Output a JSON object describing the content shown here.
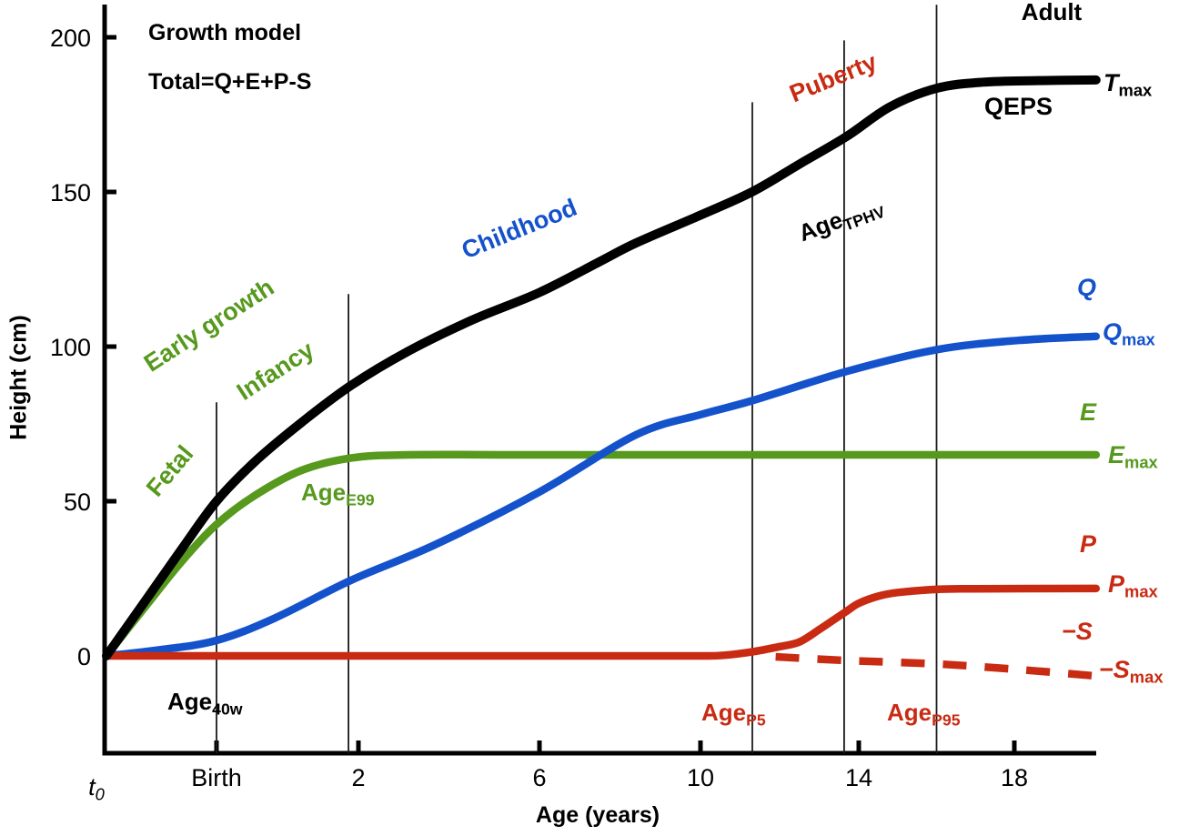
{
  "figure_title": {
    "line1": "Growth model",
    "line2": "Total=Q+E+P-S"
  },
  "axes": {
    "x_label": "Age (years)",
    "y_label": "Height (cm)",
    "t0": {
      "main": "t",
      "sub": "0"
    },
    "x_ticks": [
      {
        "age": 0,
        "label": "Birth"
      },
      {
        "age": 2,
        "label": "2"
      },
      {
        "age": 6,
        "label": "6"
      },
      {
        "age": 10,
        "label": "10"
      },
      {
        "age": 14,
        "label": "14"
      },
      {
        "age": 18,
        "label": "18"
      }
    ],
    "y_ticks": [
      {
        "cm": 0,
        "label": "0"
      },
      {
        "cm": 50,
        "label": "50"
      },
      {
        "cm": 100,
        "label": "100"
      },
      {
        "cm": 150,
        "label": "150"
      },
      {
        "cm": 200,
        "label": "200"
      }
    ]
  },
  "phases": [
    {
      "text": "Early growth",
      "color": "#56991d"
    },
    {
      "text": "Fetal",
      "color": "#56991d"
    },
    {
      "text": "Infancy",
      "color": "#56991d"
    },
    {
      "text": "Childhood",
      "color": "#1452cc"
    },
    {
      "text": "Puberty",
      "color": "#c92a12"
    },
    {
      "text": "Adult",
      "color": "#000000"
    }
  ],
  "markers": [
    {
      "main": "Age",
      "sub": "40w",
      "age": 0,
      "top_cm": 82
    },
    {
      "main": "Age",
      "sub": "E99",
      "age": 1.86,
      "top_cm": 117
    },
    {
      "main": "Age",
      "sub": "P5",
      "age": 11.31,
      "top_cm": 179
    },
    {
      "main": "Age",
      "sub": "TPHV",
      "age": 13.63,
      "top_cm": 199
    },
    {
      "main": "Age",
      "sub": "P95",
      "age": 16.0,
      "top_cm": 210.5
    }
  ],
  "curve_labels": {
    "qeps": "QEPS",
    "tmax": {
      "main": "T",
      "sub": "max"
    },
    "q": "Q",
    "qmax": {
      "main": "Q",
      "sub": "max"
    },
    "e": "E",
    "emax": {
      "main": "E",
      "sub": "max"
    },
    "p": "P",
    "pmax": {
      "main": "P",
      "sub": "max"
    },
    "s": "−S",
    "smax": {
      "main": "−S",
      "sub": "max"
    }
  },
  "colors": {
    "T": "#000000",
    "Q": "#1452cc",
    "E": "#56991d",
    "P": "#c92a12",
    "S": "#c92a12",
    "marker_line": "#1a1a1a",
    "axis": "#000000"
  },
  "chart_data": {
    "type": "line",
    "title": "Growth model Total=Q+E+P-S (QEPS)",
    "xlabel": "Age (years)",
    "ylabel": "Height (cm)",
    "x_range_years": [
      -0.79,
      20.1
    ],
    "y_range_cm": [
      -31.5,
      210
    ],
    "grid": false,
    "series": [
      {
        "name": "E",
        "color_key": "E",
        "style": "solid",
        "max_label": "Emax=65",
        "points": [
          [
            -0.79,
            0
          ],
          [
            -0.5,
            16.5
          ],
          [
            -0.25,
            30.5
          ],
          [
            0,
            42.5
          ],
          [
            0.55,
            52
          ],
          [
            1.2,
            60
          ],
          [
            1.9,
            64
          ],
          [
            3.1,
            65
          ],
          [
            6,
            65
          ],
          [
            12,
            65
          ],
          [
            20.1,
            65
          ]
        ]
      },
      {
        "name": "Q",
        "color_key": "Q",
        "style": "solid",
        "max_label": "Qmax=103",
        "points": [
          [
            -0.79,
            0
          ],
          [
            -0.4,
            2
          ],
          [
            0,
            5
          ],
          [
            0.8,
            12
          ],
          [
            1.9,
            24.5
          ],
          [
            3.7,
            36
          ],
          [
            6,
            53
          ],
          [
            8.4,
            71.5
          ],
          [
            10,
            78
          ],
          [
            11.3,
            82.5
          ],
          [
            13.7,
            92
          ],
          [
            16,
            99
          ],
          [
            18.1,
            102
          ],
          [
            20.1,
            103.3
          ]
        ]
      },
      {
        "name": "P",
        "color_key": "P",
        "style": "solid",
        "max_label": "Pmax=22",
        "points": [
          [
            -0.79,
            0
          ],
          [
            4,
            0
          ],
          [
            8,
            0
          ],
          [
            10,
            0
          ],
          [
            10.6,
            0.2
          ],
          [
            11.3,
            1.3
          ],
          [
            12,
            3
          ],
          [
            12.5,
            4.5
          ],
          [
            13,
            8.5
          ],
          [
            13.35,
            11.5
          ],
          [
            13.7,
            14.5
          ],
          [
            14,
            17
          ],
          [
            14.5,
            19.3
          ],
          [
            15,
            20.5
          ],
          [
            16,
            21.5
          ],
          [
            17,
            21.7
          ],
          [
            20.1,
            21.8
          ]
        ]
      },
      {
        "name": "−S",
        "color_key": "S",
        "style": "dashed",
        "max_label": "−Smax=−6.5",
        "points": [
          [
            11.9,
            -0.3
          ],
          [
            13.7,
            -1.5
          ],
          [
            16,
            -2.6
          ],
          [
            18.1,
            -4.4
          ],
          [
            20.1,
            -6.5
          ]
        ]
      },
      {
        "name": "QEPS total (T)",
        "color_key": "T",
        "style": "solid",
        "max_label": "Tmax=186",
        "points": [
          [
            -0.79,
            0
          ],
          [
            -0.5,
            18.5
          ],
          [
            -0.25,
            34.5
          ],
          [
            0,
            50
          ],
          [
            0.55,
            63
          ],
          [
            1.2,
            75.5
          ],
          [
            1.9,
            87.5
          ],
          [
            3.1,
            98.5
          ],
          [
            4.5,
            108.5
          ],
          [
            6,
            117.5
          ],
          [
            7.5,
            127.5
          ],
          [
            8.4,
            133.5
          ],
          [
            10,
            142.5
          ],
          [
            11.3,
            150
          ],
          [
            12.5,
            159
          ],
          [
            13.7,
            168
          ],
          [
            14.8,
            177.5
          ],
          [
            16,
            183.5
          ],
          [
            17.2,
            185.5
          ],
          [
            18.6,
            186
          ],
          [
            20.1,
            186.2
          ]
        ]
      }
    ]
  }
}
